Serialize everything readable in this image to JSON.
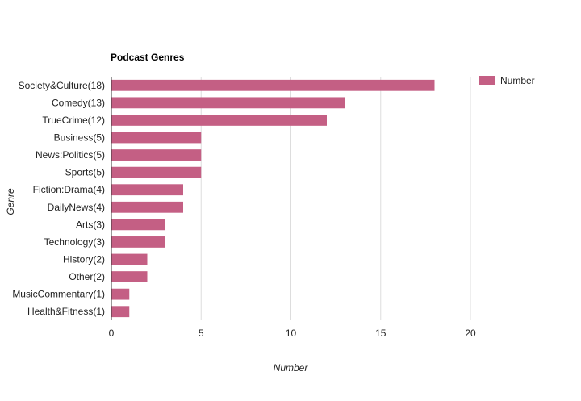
{
  "chart_data": {
    "type": "bar",
    "orientation": "horizontal",
    "title": "Podcast Genres",
    "xlabel": "Number",
    "ylabel": "Genre",
    "categories": [
      "Society&Culture(18)",
      "Comedy(13)",
      "TrueCrime(12)",
      "Business(5)",
      "News:Politics(5)",
      "Sports(5)",
      "Fiction:Drama(4)",
      "DailyNews(4)",
      "Arts(3)",
      "Technology(3)",
      "History(2)",
      "Other(2)",
      "MusicCommentary(1)",
      "Health&Fitness(1)"
    ],
    "series": [
      {
        "name": "Number",
        "values": [
          18,
          13,
          12,
          5,
          5,
          5,
          4,
          4,
          3,
          3,
          2,
          2,
          1,
          1
        ]
      }
    ],
    "xlim": [
      0,
      20
    ],
    "xticks": [
      0,
      5,
      10,
      15,
      20
    ],
    "grid": true,
    "legend": "top-right",
    "colors": {
      "bar": "#c45f84",
      "grid": "#dddddd",
      "axis": "#333333"
    }
  }
}
